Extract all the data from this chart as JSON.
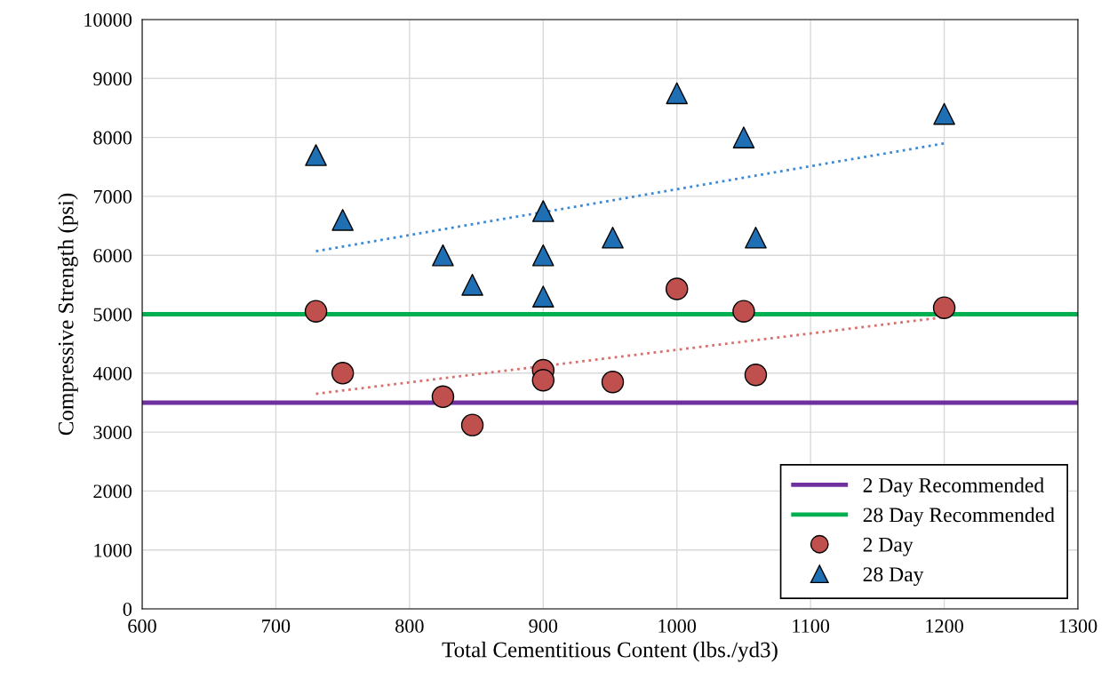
{
  "chart_data": {
    "type": "scatter",
    "xlabel": "Total Cementitious Content (lbs./yd3)",
    "ylabel": "Compressive Strength (psi)",
    "xlim": [
      600,
      1300
    ],
    "xticks": [
      600,
      700,
      800,
      900,
      1000,
      1100,
      1200,
      1300
    ],
    "ylim": [
      0,
      10000
    ],
    "yticks": [
      0,
      1000,
      2000,
      3000,
      4000,
      5000,
      6000,
      7000,
      8000,
      9000,
      10000
    ],
    "grid": true,
    "legend": "bottom right",
    "ref_lines": [
      {
        "axis": "y",
        "value": 3500,
        "label": "2 Day Recommended",
        "color": "#7030a0",
        "line_style": "solid"
      },
      {
        "axis": "y",
        "value": 5000,
        "label": "28 Day Recommended",
        "color": "#00b050",
        "line_style": "solid"
      }
    ],
    "series": [
      {
        "name": "2 Day",
        "marker": "circle",
        "color": "#c0504d",
        "x": [
          730,
          750,
          825,
          847,
          900,
          900,
          952,
          1000,
          1050,
          1059,
          1200
        ],
        "values": [
          5050,
          4000,
          3600,
          3120,
          4050,
          3880,
          3850,
          5430,
          5050,
          3970,
          5110
        ]
      },
      {
        "name": "28 Day",
        "marker": "triangle",
        "color": "#1f6fb4",
        "x": [
          730,
          750,
          825,
          847,
          900,
          900,
          900,
          952,
          1000,
          1050,
          1059,
          1200
        ],
        "values": [
          7700,
          6600,
          6000,
          5500,
          6750,
          6000,
          5300,
          6300,
          8750,
          8000,
          6300,
          8400
        ]
      },
      {
        "type": "line",
        "line_style": "dotted",
        "marker": "none",
        "color": "#d9706b",
        "x": [
          730,
          1200
        ],
        "values": [
          3650,
          4950
        ]
      },
      {
        "type": "line",
        "line_style": "dotted",
        "marker": "none",
        "color": "#3c8ad6",
        "x": [
          730,
          1200
        ],
        "values": [
          6070,
          7900
        ]
      }
    ]
  }
}
